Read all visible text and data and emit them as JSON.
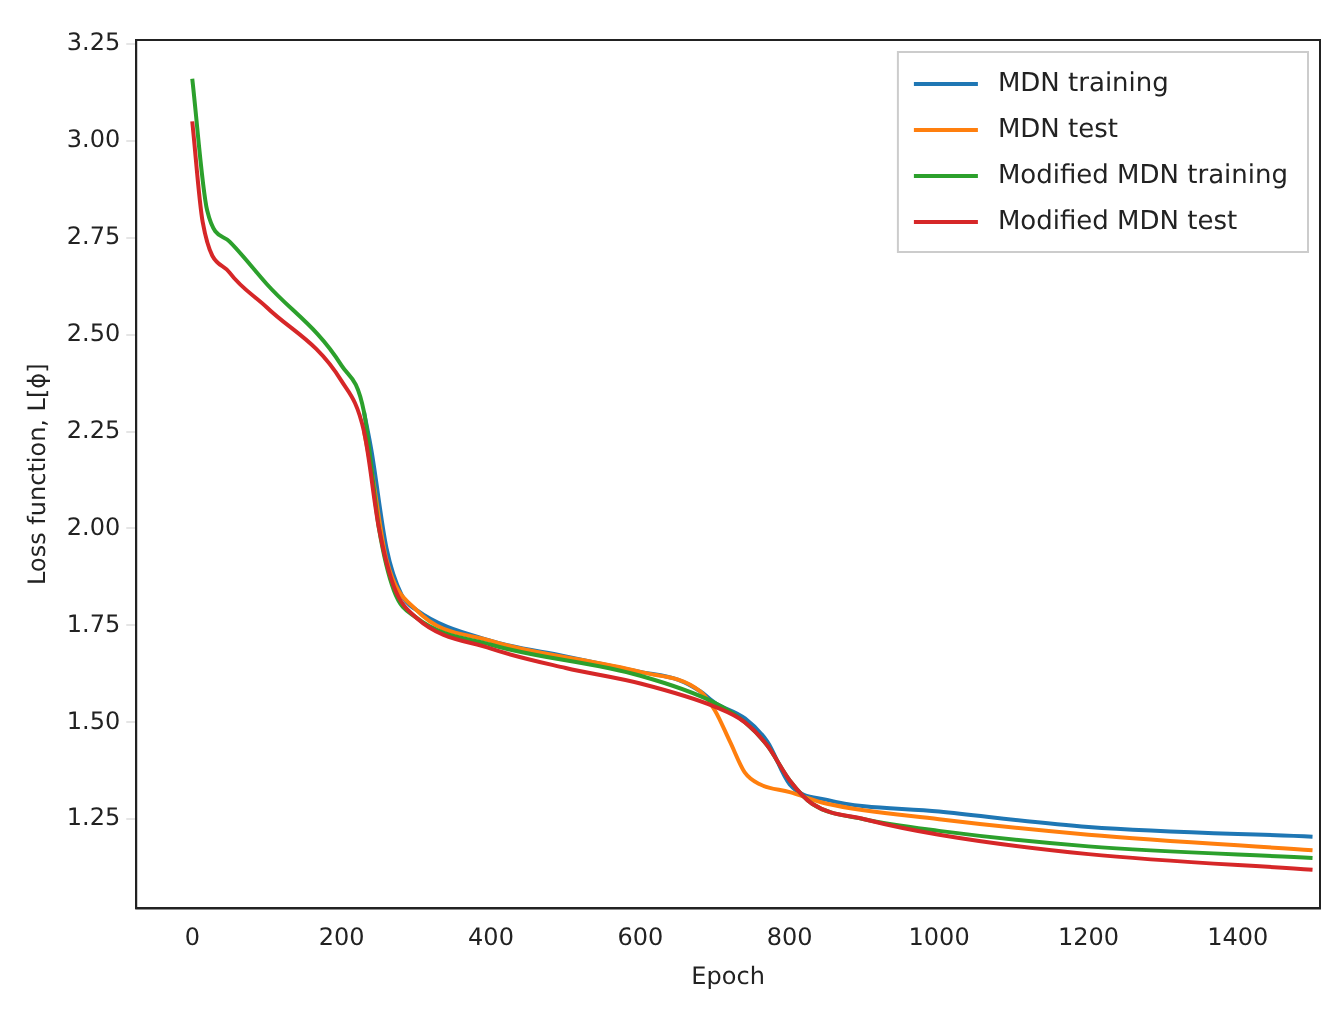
{
  "chart_data": {
    "type": "line",
    "xlabel": "Epoch",
    "ylabel": "Loss function, L[ϕ]",
    "xlim": [
      -75,
      1510
    ],
    "xticks": [
      0,
      200,
      400,
      600,
      800,
      1000,
      1200,
      1400
    ],
    "ylim": [
      1.02,
      3.26
    ],
    "yticks": [
      {
        "value": 1.25,
        "label": "1.25"
      },
      {
        "value": 1.5,
        "label": "1.50"
      },
      {
        "value": 1.75,
        "label": "1.75"
      },
      {
        "value": 2.0,
        "label": "2.00"
      },
      {
        "value": 2.25,
        "label": "2.25"
      },
      {
        "value": 2.5,
        "label": "2.50"
      },
      {
        "value": 2.75,
        "label": "2.75"
      },
      {
        "value": 3.0,
        "label": "3.00"
      },
      {
        "value": 3.25,
        "label": "3.25"
      }
    ],
    "grid": false,
    "legend": "top right",
    "marker": "none",
    "line_style": "solid",
    "series": [
      {
        "name": "MDN training",
        "color": "#1f77b4",
        "x": [
          230,
          240,
          260,
          280,
          300,
          400,
          500,
          600,
          650,
          680,
          700,
          740,
          770,
          800,
          850,
          1000,
          1200,
          1500
        ],
        "values": [
          2.3,
          2.2,
          1.95,
          1.83,
          1.79,
          1.71,
          1.67,
          1.63,
          1.61,
          1.58,
          1.55,
          1.51,
          1.45,
          1.34,
          1.3,
          1.27,
          1.23,
          1.205
        ]
      },
      {
        "name": "MDN test",
        "color": "#ff7f0e",
        "x": [
          230,
          240,
          260,
          300,
          400,
          600,
          680,
          700,
          720,
          740,
          760,
          800,
          850,
          1000,
          1200,
          1500
        ],
        "values": [
          2.25,
          2.15,
          1.92,
          1.79,
          1.71,
          1.63,
          1.58,
          1.53,
          1.45,
          1.37,
          1.34,
          1.32,
          1.29,
          1.25,
          1.21,
          1.17
        ]
      },
      {
        "name": "Modified MDN training",
        "color": "#2ca02c",
        "x": [
          0,
          20,
          50,
          100,
          200,
          230,
          250,
          270,
          300,
          400,
          600,
          700,
          740,
          770,
          800,
          830,
          900,
          1000,
          1200,
          1500
        ],
        "values": [
          3.16,
          2.82,
          2.74,
          2.63,
          2.42,
          2.3,
          2.0,
          1.84,
          1.77,
          1.7,
          1.62,
          1.55,
          1.5,
          1.44,
          1.35,
          1.29,
          1.25,
          1.22,
          1.18,
          1.15
        ]
      },
      {
        "name": "Modified MDN test",
        "color": "#d62728",
        "x": [
          0,
          14,
          50,
          100,
          200,
          230,
          250,
          270,
          300,
          400,
          500,
          600,
          700,
          740,
          770,
          800,
          830,
          900,
          1000,
          1200,
          1500
        ],
        "values": [
          3.05,
          2.79,
          2.66,
          2.57,
          2.38,
          2.25,
          2.0,
          1.85,
          1.77,
          1.69,
          1.64,
          1.6,
          1.54,
          1.5,
          1.44,
          1.35,
          1.29,
          1.25,
          1.21,
          1.16,
          1.12
        ]
      }
    ]
  }
}
